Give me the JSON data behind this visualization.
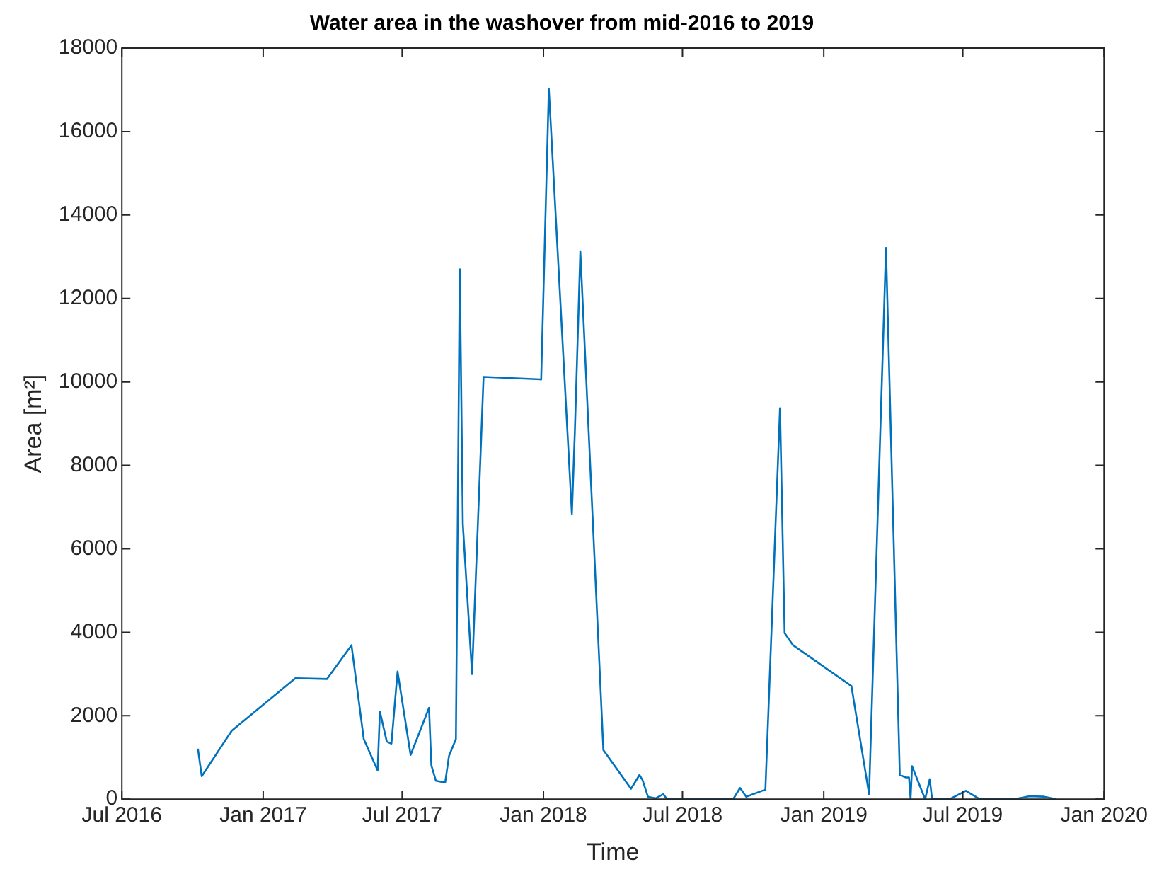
{
  "chart_data": {
    "type": "line",
    "title": "Water area in the washover from mid-2016 to 2019",
    "xlabel": "Time",
    "ylabel": "Area [m²]",
    "x": [
      "2016-10-08",
      "2016-10-13",
      "2016-11-21",
      "2017-02-12",
      "2017-03-25",
      "2017-04-26",
      "2017-05-12",
      "2017-05-30",
      "2017-06-02",
      "2017-06-11",
      "2017-06-17",
      "2017-06-25",
      "2017-07-12",
      "2017-08-05",
      "2017-08-08",
      "2017-08-14",
      "2017-08-26",
      "2017-08-31",
      "2017-09-09",
      "2017-09-14",
      "2017-09-18",
      "2017-09-30",
      "2017-10-15",
      "2017-12-29",
      "2018-01-08",
      "2018-02-07",
      "2018-02-11",
      "2018-02-18",
      "2018-03-20",
      "2018-04-25",
      "2018-05-06",
      "2018-05-10",
      "2018-05-17",
      "2018-05-27",
      "2018-06-06",
      "2018-06-10",
      "2018-09-05",
      "2018-09-14",
      "2018-09-22",
      "2018-10-17",
      "2018-11-05",
      "2018-11-11",
      "2018-11-22",
      "2019-02-06",
      "2019-03-01",
      "2019-03-23",
      "2019-04-10",
      "2019-04-18",
      "2019-04-22",
      "2019-04-24",
      "2019-04-26",
      "2019-05-03",
      "2019-05-13",
      "2019-05-19",
      "2019-05-22",
      "2019-06-14",
      "2019-07-05",
      "2019-07-23",
      "2019-09-06",
      "2019-09-26",
      "2019-10-15",
      "2019-10-31"
    ],
    "values": [
      1210,
      550,
      1640,
      2900,
      2880,
      3690,
      1440,
      690,
      2100,
      1380,
      1330,
      3060,
      1060,
      2190,
      810,
      440,
      400,
      1040,
      1440,
      12700,
      6600,
      3000,
      10120,
      10060,
      17020,
      6840,
      8880,
      13130,
      1180,
      250,
      580,
      460,
      60,
      20,
      120,
      20,
      0,
      270,
      60,
      230,
      9370,
      3980,
      3690,
      2710,
      120,
      13210,
      580,
      520,
      520,
      0,
      790,
      460,
      0,
      480,
      0,
      0,
      200,
      0,
      0,
      70,
      60,
      0
    ],
    "color": "#0072bd",
    "xlim": [
      "2016-07",
      "2020-01"
    ],
    "xticks": [
      {
        "value": "2016-07",
        "label": "Jul 2016"
      },
      {
        "value": "2017-01",
        "label": "Jan 2017"
      },
      {
        "value": "2017-07",
        "label": "Jul 2017"
      },
      {
        "value": "2018-01",
        "label": "Jan 2018"
      },
      {
        "value": "2018-07",
        "label": "Jul 2018"
      },
      {
        "value": "2019-01",
        "label": "Jan 2019"
      },
      {
        "value": "2019-07",
        "label": "Jul 2019"
      },
      {
        "value": "2020-01",
        "label": "Jan 2020"
      }
    ],
    "ylim": [
      0,
      18000
    ],
    "yticks": [
      0,
      2000,
      4000,
      6000,
      8000,
      10000,
      12000,
      14000,
      16000,
      18000
    ],
    "grid": false,
    "legend": false,
    "marker": "none",
    "line_style": "solid"
  }
}
